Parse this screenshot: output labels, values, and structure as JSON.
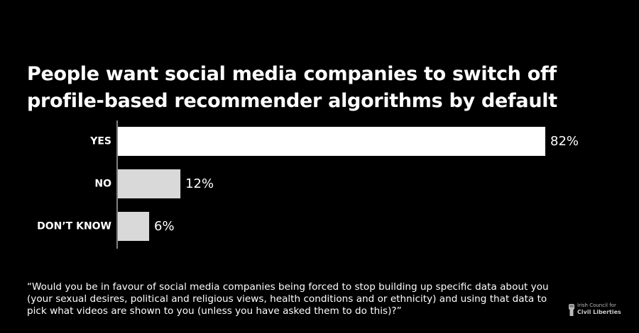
{
  "title_lines": [
    "People want social media companies to switch off",
    "profile-based recommender algorithms by default"
  ],
  "chart_data": {
    "type": "bar",
    "orientation": "horizontal",
    "categories": [
      "YES",
      "NO",
      "DON’T KNOW"
    ],
    "values": [
      82,
      12,
      6
    ],
    "value_labels": [
      "82%",
      "12%",
      "6%"
    ],
    "xlim": [
      0,
      82
    ],
    "colors": [
      "#ffffff",
      "#d9d9d9",
      "#d9d9d9"
    ],
    "grid": false,
    "legend": "none"
  },
  "question": "“Would you be in favour of social media companies being forced to stop building up specific data about you (your sexual desires, political and religious views, health conditions and or ethnicity) and using that data to pick what videos are shown to you (unless you have asked them to do this)?”",
  "logo": {
    "icon": "fist-icon",
    "line1": "Irish Council for",
    "line2": "Civil Liberties"
  },
  "colors": {
    "background": "#000000",
    "text": "#ffffff",
    "axis": "#ffffff"
  }
}
